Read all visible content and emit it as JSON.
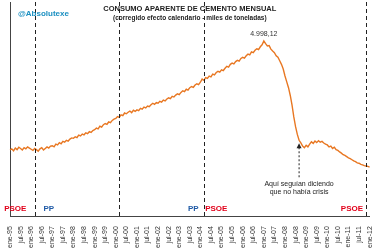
{
  "chart_data": {
    "type": "line",
    "title": "CONSUMO APARENTE DE CEMENTO MENSUAL",
    "subtitle": "(corregido efecto calendario - miles de toneladas)",
    "handle": "@Absolutexe",
    "color": "#e87722",
    "grid": false,
    "tick_labels": "x",
    "ylim": [
      500,
      6000
    ],
    "categories": [
      "ene-95",
      null,
      null,
      null,
      null,
      null,
      "jul-95",
      null,
      null,
      null,
      null,
      null,
      "ene-96",
      null,
      null,
      null,
      null,
      null,
      "jul-96",
      null,
      null,
      null,
      null,
      null,
      "ene-97",
      null,
      null,
      null,
      null,
      null,
      "jul-97",
      null,
      null,
      null,
      null,
      null,
      "ene-98",
      null,
      null,
      null,
      null,
      null,
      "jul-98",
      null,
      null,
      null,
      null,
      null,
      "ene-99",
      null,
      null,
      null,
      null,
      null,
      "jul-99",
      null,
      null,
      null,
      null,
      null,
      "ene-00",
      null,
      null,
      null,
      null,
      null,
      "jul-00",
      null,
      null,
      null,
      null,
      null,
      "ene-01",
      null,
      null,
      null,
      null,
      null,
      "jul-01",
      null,
      null,
      null,
      null,
      null,
      "ene-02",
      null,
      null,
      null,
      null,
      null,
      "jul-02",
      null,
      null,
      null,
      null,
      null,
      "ene-03",
      null,
      null,
      null,
      null,
      null,
      "jul-03",
      null,
      null,
      null,
      null,
      null,
      "ene-04",
      null,
      null,
      null,
      null,
      null,
      "jul-04",
      null,
      null,
      null,
      null,
      null,
      "ene-05",
      null,
      null,
      null,
      null,
      null,
      "jul-05",
      null,
      null,
      null,
      null,
      null,
      "ene-06",
      null,
      null,
      null,
      null,
      null,
      "jul-06",
      null,
      null,
      null,
      null,
      null,
      "ene-07",
      null,
      null,
      null,
      null,
      null,
      "jul-07",
      null,
      null,
      null,
      null,
      null,
      "ene-08",
      null,
      null,
      null,
      null,
      null,
      "jul-08",
      null,
      null,
      null,
      null,
      null,
      "ene-09",
      null,
      null,
      null,
      null,
      null,
      "jul-09",
      null,
      null,
      null,
      null,
      null,
      "ene-10",
      null,
      null,
      null,
      null,
      null,
      "jul-10",
      null,
      null,
      null,
      null,
      null,
      "ene-11",
      null,
      null,
      null,
      null,
      null,
      "jul-11",
      null,
      null,
      null,
      null,
      null,
      "ene-12"
    ],
    "values": [
      2200,
      2230,
      2180,
      2250,
      2210,
      2270,
      2240,
      2200,
      2260,
      2230,
      2280,
      2250,
      2220,
      2190,
      2240,
      2210,
      2170,
      2230,
      2260,
      2200,
      2240,
      2280,
      2250,
      2300,
      2310,
      2280,
      2350,
      2330,
      2390,
      2360,
      2420,
      2400,
      2450,
      2430,
      2480,
      2510,
      2500,
      2540,
      2520,
      2580,
      2560,
      2610,
      2590,
      2640,
      2620,
      2670,
      2650,
      2700,
      2720,
      2760,
      2740,
      2810,
      2790,
      2850,
      2880,
      2860,
      2920,
      2900,
      2960,
      2990,
      3010,
      3060,
      3040,
      3100,
      3080,
      3150,
      3130,
      3170,
      3200,
      3160,
      3220,
      3190,
      3230,
      3210,
      3270,
      3250,
      3300,
      3280,
      3330,
      3310,
      3360,
      3400,
      3370,
      3420,
      3400,
      3450,
      3430,
      3480,
      3460,
      3510,
      3540,
      3520,
      3580,
      3560,
      3610,
      3640,
      3620,
      3680,
      3720,
      3700,
      3760,
      3740,
      3800,
      3830,
      3810,
      3870,
      3900,
      3880,
      3940,
      4020,
      3990,
      4060,
      4040,
      4100,
      4080,
      4150,
      4130,
      4190,
      4220,
      4200,
      4260,
      4240,
      4300,
      4350,
      4330,
      4400,
      4430,
      4410,
      4470,
      4500,
      4480,
      4550,
      4580,
      4560,
      4620,
      4660,
      4640,
      4720,
      4700,
      4760,
      4800,
      4780,
      4850,
      4900,
      4998.12,
      4930,
      4870,
      4880,
      4790,
      4740,
      4700,
      4620,
      4580,
      4490,
      4400,
      4280,
      4100,
      3950,
      3800,
      3600,
      3350,
      3050,
      2800,
      2600,
      2450,
      2380,
      2300,
      2260,
      2320,
      2280,
      2350,
      2410,
      2370,
      2430,
      2390,
      2440,
      2400,
      2420,
      2380,
      2350,
      2330,
      2280,
      2300,
      2240,
      2270,
      2210,
      2190,
      2150,
      2120,
      2080,
      2060,
      2030,
      2000,
      1980,
      1950,
      1920,
      1900,
      1870,
      1860,
      1830,
      1820,
      1800,
      1790,
      1780,
      1760
    ],
    "vlines": [
      14,
      62,
      110,
      202
    ],
    "party_labels": [
      {
        "index": 3,
        "text": "PSOE",
        "color": "#e2001a"
      },
      {
        "index": 22,
        "text": "PP",
        "color": "#1f5aa6"
      },
      {
        "index": 104,
        "text": "PP",
        "color": "#1f5aa6"
      },
      {
        "index": 117,
        "text": "PSOE",
        "color": "#e2001a"
      },
      {
        "index": 194,
        "text": "PSOE",
        "color": "#e2001a"
      }
    ],
    "peak_label": {
      "index": 144,
      "text": "4.998,12"
    },
    "annotation": {
      "index": 164,
      "text": [
        "Aquí seguían diciendo",
        "que no había crisis"
      ]
    }
  }
}
